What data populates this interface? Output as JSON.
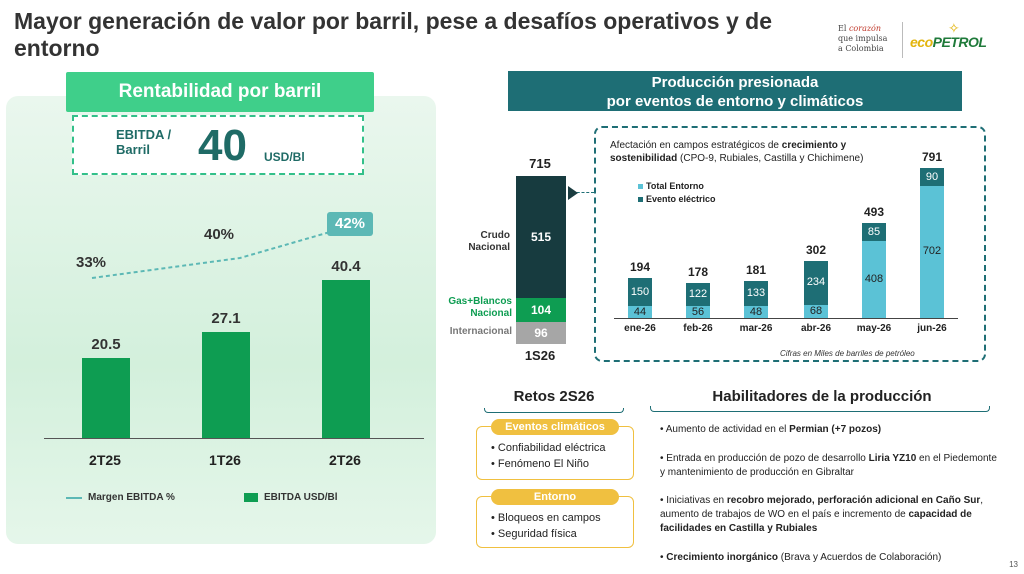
{
  "title": "Mayor generación de valor por barril, pese a desafíos operativos y de entorno",
  "logo": {
    "tagline_1": "El",
    "tagline_2": "corazón",
    "tagline_3": "que impulsa",
    "tagline_4": "a Colombia",
    "word_a": "eco",
    "word_b": "PETROL"
  },
  "left": {
    "banner": "Rentabilidad por barril",
    "ebitda_label_1": "EBITDA /",
    "ebitda_label_2": "Barril",
    "ebitda_value": "40",
    "ebitda_unit": "USD/Bl",
    "legend_line": "Margen EBITDA %",
    "legend_bar": "EBITDA USD/Bl"
  },
  "right": {
    "banner_1": "Producción presionada",
    "banner_2": "por eventos de entorno y climáticos",
    "box_text_plain_1": "Afectación en campos estratégicos de ",
    "box_text_bold": "crecimiento y sostenibilidad",
    "box_text_plain_2": " (CPO-9, Rubiales, Castilla y Chichimene)",
    "legend_total": "Total Entorno",
    "legend_event": "Evento eléctrico",
    "note": "Cifras en Miles de barriles de petróleo",
    "stack_labels": [
      "Crudo Nacional",
      "Gas+Blancos Nacional",
      "Internacional"
    ]
  },
  "chart_data": [
    {
      "type": "bar",
      "categories": [
        "2T25",
        "1T26",
        "2T26"
      ],
      "series": [
        {
          "name": "EBITDA USD/Bl",
          "values": [
            20.5,
            27.1,
            40.4
          ]
        },
        {
          "name": "Margen EBITDA %",
          "values": [
            "33%",
            "40%",
            "42%"
          ]
        }
      ]
    },
    {
      "type": "bar",
      "categories": [
        "1S26"
      ],
      "series": [
        {
          "name": "Crudo Nacional",
          "values": [
            515
          ]
        },
        {
          "name": "Gas+Blancos Nacional",
          "values": [
            104
          ]
        },
        {
          "name": "Internacional",
          "values": [
            96
          ]
        }
      ],
      "totals": [
        715
      ]
    },
    {
      "type": "bar",
      "categories": [
        "ene-26",
        "feb-26",
        "mar-26",
        "abr-26",
        "may-26",
        "jun-26"
      ],
      "series": [
        {
          "name": "Total Entorno",
          "values": [
            44,
            56,
            48,
            68,
            408,
            702
          ]
        },
        {
          "name": "Evento eléctrico",
          "values": [
            150,
            122,
            133,
            234,
            85,
            90
          ]
        }
      ],
      "totals": [
        194,
        178,
        181,
        302,
        493,
        791
      ]
    }
  ],
  "retos": {
    "title": "Retos 2S26",
    "box1_head": "Eventos climáticos",
    "box1_items": [
      "Confiabilidad eléctrica",
      "Fenómeno El Niño"
    ],
    "box2_head": "Entorno",
    "box2_items": [
      "Bloqueos en campos",
      "Seguridad física"
    ]
  },
  "habilitadores": {
    "title": "Habilitadores de la producción",
    "i1_a": "Aumento de actividad en el ",
    "i1_b": "Permian (+7 pozos)",
    "i2_a": "Entrada en producción de pozo de desarrollo ",
    "i2_b": "Liria YZ10",
    "i2_c": " en el Piedemonte y mantenimiento de producción en Gibraltar",
    "i3_a": "Iniciativas en ",
    "i3_b": "recobro mejorado, perforación adicional en Caño Sur",
    "i3_c": ", aumento de trabajos de WO en el país e incremento de ",
    "i3_d": "capacidad de facilidades en Castilla y Rubiales",
    "i4_a": "Crecimiento inorgánico",
    "i4_b": " (Brava y Acuerdos de Colaboración)"
  },
  "page_number": "13"
}
